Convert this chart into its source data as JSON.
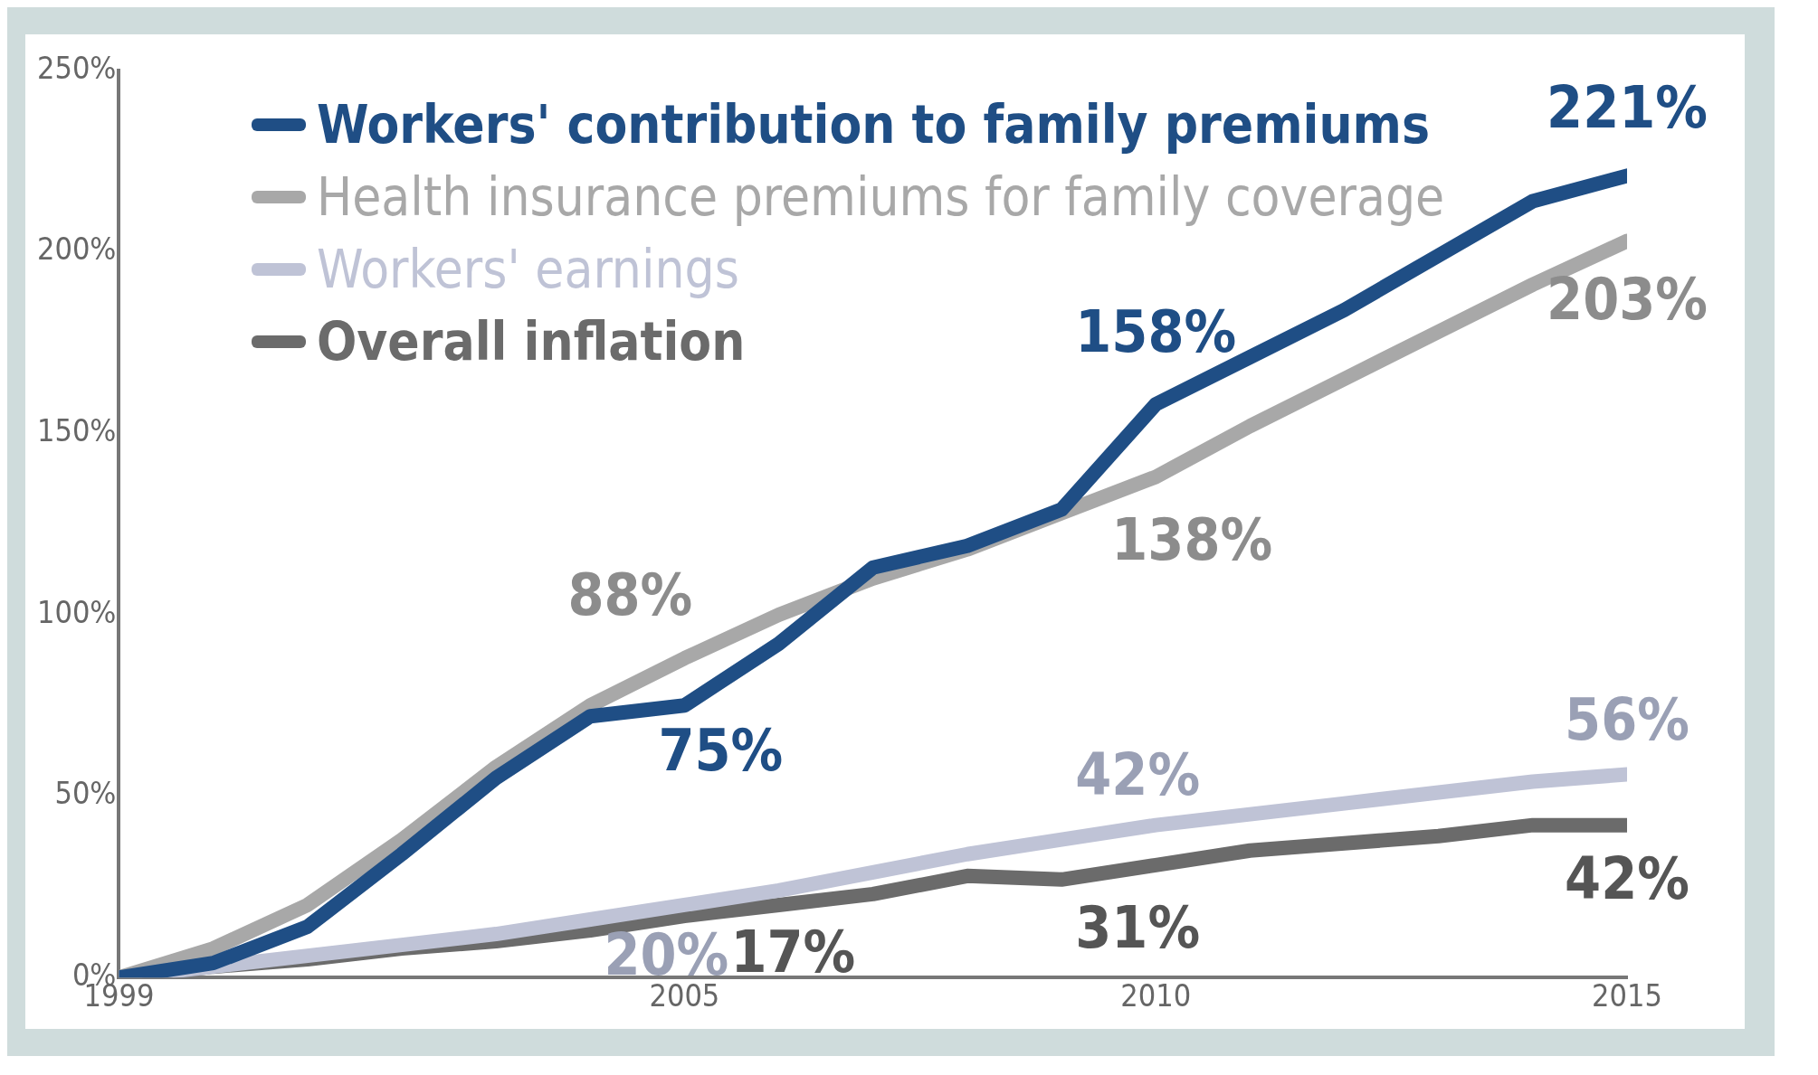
{
  "chart_data": {
    "type": "line",
    "x": [
      1999,
      2000,
      2001,
      2002,
      2003,
      2004,
      2005,
      2006,
      2007,
      2008,
      2009,
      2010,
      2011,
      2012,
      2013,
      2014,
      2015
    ],
    "series": [
      {
        "name": "Workers' contribution to family premiums",
        "color": "#1f4e85",
        "values": [
          0,
          4,
          14,
          34,
          55,
          72,
          75,
          92,
          113,
          119,
          129,
          158,
          171,
          184,
          199,
          214,
          221
        ]
      },
      {
        "name": "Health insurance premiums for family coverage",
        "color": "#a8a8a8",
        "values": [
          0,
          8,
          20,
          38,
          58,
          75,
          88,
          100,
          110,
          118,
          128,
          138,
          152,
          165,
          178,
          191,
          203
        ]
      },
      {
        "name": "Workers' earnings",
        "color": "#bfc3d6",
        "values": [
          0,
          3,
          6,
          9,
          12,
          16,
          20,
          24,
          29,
          34,
          38,
          42,
          45,
          48,
          51,
          54,
          56
        ]
      },
      {
        "name": "Overall inflation",
        "color": "#6b6b6b",
        "values": [
          0,
          3,
          5,
          8,
          10,
          13,
          17,
          20,
          23,
          28,
          27,
          31,
          35,
          37,
          39,
          42,
          42
        ]
      }
    ],
    "xlim": [
      1999,
      2015
    ],
    "xticks": [
      1999,
      2005,
      2010,
      2015
    ],
    "ylim": [
      0,
      250
    ],
    "yticks": [
      {
        "value": 0,
        "label": "0%"
      },
      {
        "value": 50,
        "label": "50%"
      },
      {
        "value": 100,
        "label": "100%"
      },
      {
        "value": 150,
        "label": "150%"
      },
      {
        "value": 200,
        "label": "200%"
      },
      {
        "value": 250,
        "label": "250%"
      }
    ],
    "grid": false,
    "legend": "top left",
    "marker": "none",
    "line_style": "solid",
    "annotations": [
      {
        "text": "221%",
        "x": 2015,
        "y": 221
      },
      {
        "text": "158%",
        "x": 2010,
        "y": 158
      },
      {
        "text": "75%",
        "x": 2005,
        "y": 75
      },
      {
        "text": "203%",
        "x": 2015,
        "y": 203
      },
      {
        "text": "138%",
        "x": 2010,
        "y": 138
      },
      {
        "text": "88%",
        "x": 2005,
        "y": 88
      },
      {
        "text": "56%",
        "x": 2015,
        "y": 56
      },
      {
        "text": "42%",
        "x": 2010,
        "y": 42
      },
      {
        "text": "20%",
        "x": 2005,
        "y": 20
      },
      {
        "text": "42%",
        "x": 2015,
        "y": 42
      },
      {
        "text": "31%",
        "x": 2010,
        "y": 31
      },
      {
        "text": "17%",
        "x": 2005,
        "y": 17
      }
    ]
  }
}
